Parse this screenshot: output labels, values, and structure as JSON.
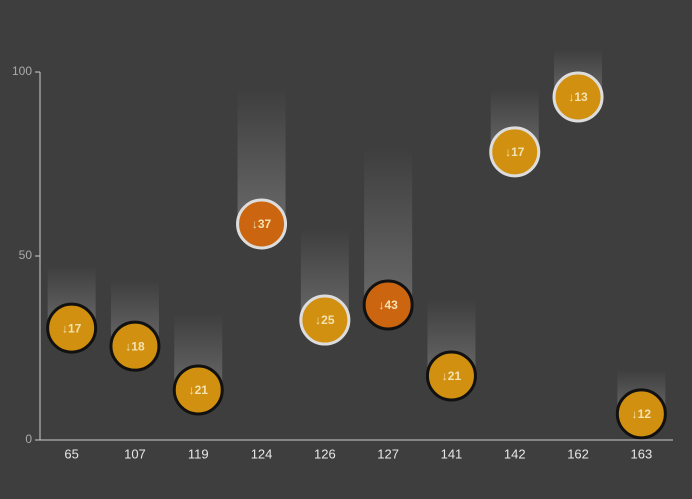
{
  "chart_data": {
    "type": "scatter",
    "categories": [
      "65",
      "107",
      "119",
      "124",
      "126",
      "127",
      "141",
      "142",
      "162",
      "163"
    ],
    "values": [
      30.4,
      25.5,
      13.6,
      58.7,
      32.6,
      36.7,
      17.4,
      78.3,
      93.2,
      7.1
    ],
    "drops": [
      17,
      18,
      21,
      37,
      25,
      43,
      21,
      17,
      13,
      12
    ],
    "drop_labels": [
      "↓17",
      "↓18",
      "↓21",
      "↓37",
      "↓25",
      "↓43",
      "↓21",
      "↓17",
      "↓13",
      "↓12"
    ],
    "colors": [
      "#d1900f",
      "#d1900f",
      "#d1900f",
      "#cc6510",
      "#d1900f",
      "#cc6510",
      "#d1900f",
      "#d1900f",
      "#d1900f",
      "#d1900f"
    ],
    "outlines": [
      "#111111",
      "#111111",
      "#111111",
      "#dddddd",
      "#dddddd",
      "#111111",
      "#111111",
      "#dddddd",
      "#dddddd",
      "#111111"
    ],
    "ylim": [
      0,
      100
    ],
    "yticks": [
      0,
      50,
      100
    ]
  }
}
